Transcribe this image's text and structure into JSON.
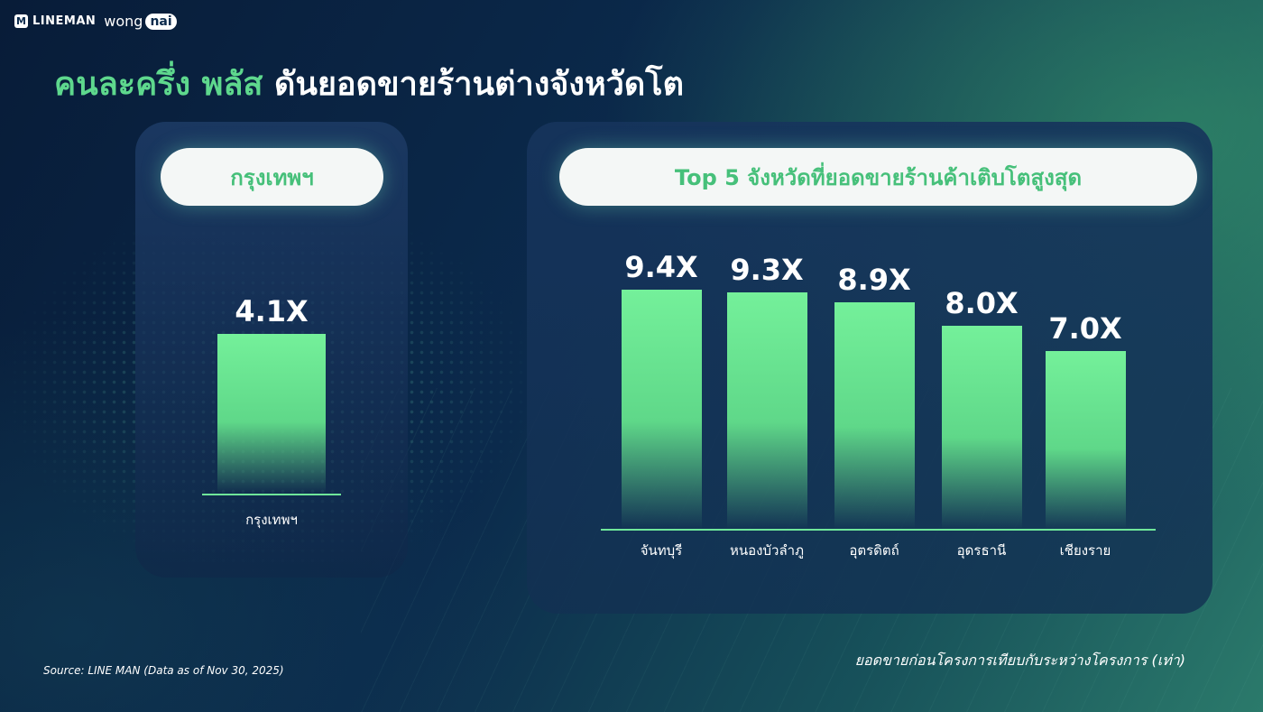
{
  "brand": {
    "mark": "M",
    "name1": "LINEMAN",
    "name2a": "wong",
    "name2b": "nai"
  },
  "title": {
    "highlight": "คนละครึ่ง พลัส",
    "rest": "ดันยอดขายร้านต่างจังหวัดโต"
  },
  "colors": {
    "accent": "#5ed88d",
    "bar": "#6fe79a",
    "bg_dark": "#081c38"
  },
  "chart_data": [
    {
      "type": "bar",
      "title": "กรุงเทพฯ",
      "categories": [
        "กรุงเทพฯ"
      ],
      "values": [
        4.1
      ],
      "labels": [
        "4.1X"
      ],
      "ylim": [
        0,
        10
      ]
    },
    {
      "type": "bar",
      "title": "Top 5 จังหวัดที่ยอดขายร้านค้าเติบโตสูงสุด",
      "categories": [
        "จันทบุรี",
        "หนองบัวลำภู",
        "อุตรดิตถ์",
        "อุดรธานี",
        "เชียงราย"
      ],
      "values": [
        9.4,
        9.3,
        8.9,
        8.0,
        7.0
      ],
      "labels": [
        "9.4X",
        "9.3X",
        "8.9X",
        "8.0X",
        "7.0X"
      ],
      "ylim": [
        0,
        10
      ]
    }
  ],
  "footer": {
    "source": "Source: LINE MAN (Data as of Nov 30, 2025)",
    "note": "ยอดขายก่อนโครงการเทียบกับระหว่างโครงการ (เท่า)"
  }
}
